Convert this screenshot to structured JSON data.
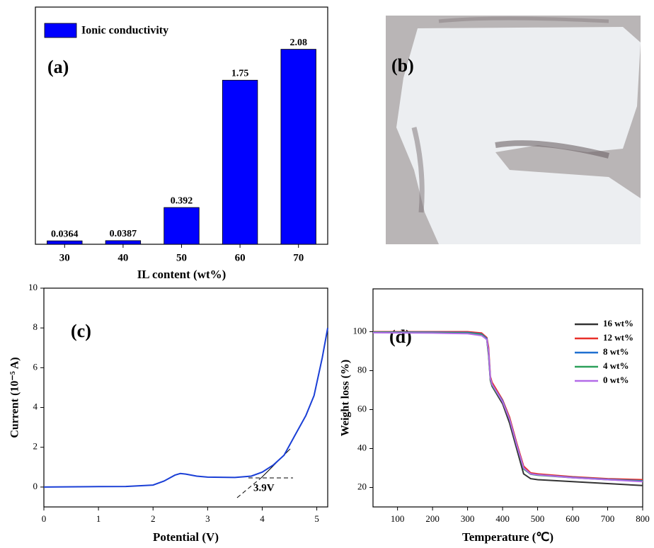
{
  "chart_data": [
    {
      "type": "bar",
      "panel_label": "(a)",
      "x_label": "IL content (wt%)",
      "categories": [
        "30",
        "40",
        "50",
        "60",
        "70"
      ],
      "series": [
        {
          "name": "Ionic conductivity",
          "color": "#0000ff",
          "values": [
            0.0364,
            0.0387,
            0.392,
            1.75,
            2.08
          ]
        }
      ],
      "ylim": [
        0,
        2.53
      ],
      "yticks": []
    },
    {
      "type": "line",
      "panel_label": "(c)",
      "annotation": "3.9V",
      "x_label": "Potential (V)",
      "y_label": "Current (10⁻⁵ A)",
      "x": [
        0,
        1,
        1.5,
        2,
        2.2,
        2.4,
        2.5,
        2.6,
        2.8,
        3,
        3.5,
        3.8,
        4,
        4.2,
        4.4,
        4.6,
        4.8,
        4.95,
        5.1,
        5.2
      ],
      "series": [
        {
          "color": "#1a3fd6",
          "values": [
            0,
            0.02,
            0.03,
            0.1,
            0.3,
            0.6,
            0.68,
            0.65,
            0.55,
            0.5,
            0.48,
            0.55,
            0.75,
            1.1,
            1.6,
            2.6,
            3.6,
            4.6,
            6.5,
            8
          ]
        }
      ],
      "xlim": [
        0,
        5.2
      ],
      "xticks": [
        0,
        1,
        2,
        3,
        4,
        5
      ],
      "ylim": [
        -1,
        10
      ],
      "yticks": [
        0,
        2,
        4,
        6,
        8,
        10
      ]
    },
    {
      "type": "line",
      "panel_label": "(d)",
      "x_label": "Temperature (℃)",
      "y_label": "Weight loss (%)",
      "x": [
        30,
        100,
        200,
        300,
        340,
        355,
        360,
        365,
        370,
        380,
        400,
        420,
        440,
        460,
        480,
        500,
        600,
        700,
        800
      ],
      "series": [
        {
          "name": "16 wt%",
          "color": "#333333",
          "values": [
            100,
            99.7,
            99.6,
            99.5,
            98.5,
            96,
            88,
            75,
            72,
            69,
            63,
            53,
            40,
            27,
            24.5,
            24,
            23,
            22,
            21
          ]
        },
        {
          "name": "12 wt%",
          "color": "#e8302a",
          "values": [
            100,
            100,
            100,
            100,
            99.3,
            97,
            92,
            77,
            74,
            71,
            65,
            56,
            43,
            31,
            27.5,
            27,
            25.5,
            24.5,
            24
          ]
        },
        {
          "name": "8 wt%",
          "color": "#1f6fd0",
          "values": [
            99.8,
            99.8,
            99.7,
            99.6,
            98.8,
            96.5,
            90,
            76,
            73,
            70,
            64.5,
            55,
            42,
            30,
            27,
            26.5,
            25.2,
            24.2,
            23.4
          ]
        },
        {
          "name": "4 wt%",
          "color": "#2ca05a",
          "values": [
            99.7,
            99.6,
            99.5,
            99.3,
            98.5,
            96,
            89,
            75.5,
            72.5,
            69.5,
            64,
            55,
            42,
            29.5,
            26.8,
            26.3,
            25,
            24,
            23.2
          ]
        },
        {
          "name": "0 wt%",
          "color": "#b36be8",
          "values": [
            99.5,
            99.4,
            99.3,
            99,
            98,
            96,
            90,
            76,
            73,
            70,
            64,
            55,
            42,
            30,
            27,
            26.5,
            25,
            24,
            23
          ]
        }
      ],
      "xlim": [
        30,
        800
      ],
      "xticks": [
        100,
        200,
        300,
        400,
        500,
        600,
        700,
        800
      ],
      "ylim": [
        10,
        122
      ],
      "yticks": [
        20,
        40,
        60,
        80,
        100
      ],
      "legend": "upper right"
    }
  ]
}
